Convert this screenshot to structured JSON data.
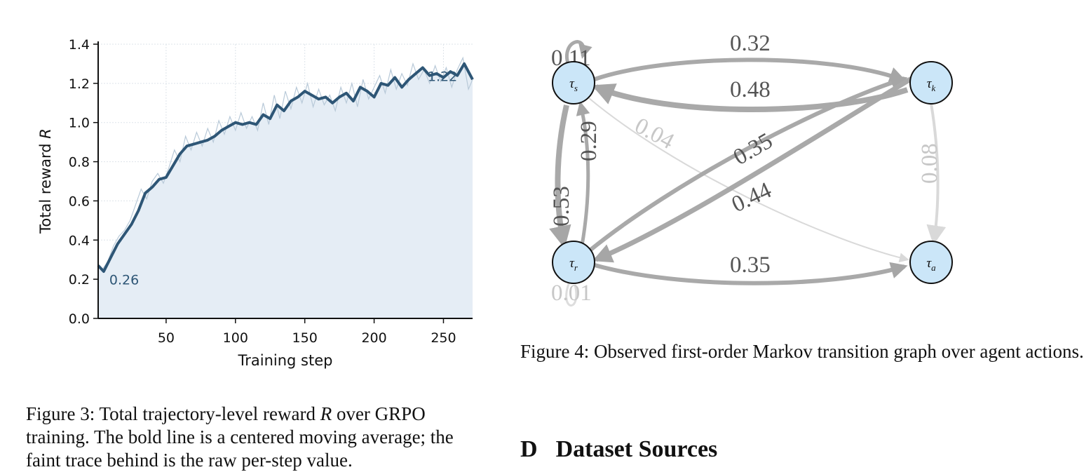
{
  "figure3": {
    "caption_prefix": "Figure 3: Total trajectory-level reward ",
    "caption_var": "R",
    "caption_suffix": " over GRPO training. The bold line is a centered moving average; the faint trace behind is the raw per-step value.",
    "chart_data": {
      "type": "line",
      "xlabel": "Training step",
      "ylabel": "Total reward R",
      "xlim": [
        1,
        271
      ],
      "ylim": [
        0.0,
        1.4
      ],
      "x_ticks": [
        "50",
        "100",
        "150",
        "200",
        "250"
      ],
      "y_ticks": [
        "0.0",
        "0.2",
        "0.4",
        "0.6",
        "0.8",
        "1.0",
        "1.2",
        "1.4"
      ],
      "grid": true,
      "fill_under": true,
      "annotations": [
        {
          "text": "0.26",
          "x": 6,
          "y": 0.26
        },
        {
          "text": "1.22",
          "x": 262,
          "y": 1.22
        }
      ],
      "series": [
        {
          "style": "bold moving average",
          "color": "#2e5676",
          "points": [
            [
              1,
              0.27
            ],
            [
              5,
              0.24
            ],
            [
              10,
              0.31
            ],
            [
              15,
              0.38
            ],
            [
              20,
              0.43
            ],
            [
              25,
              0.48
            ],
            [
              30,
              0.55
            ],
            [
              35,
              0.64
            ],
            [
              40,
              0.67
            ],
            [
              45,
              0.71
            ],
            [
              50,
              0.72
            ],
            [
              55,
              0.78
            ],
            [
              60,
              0.84
            ],
            [
              65,
              0.88
            ],
            [
              70,
              0.89
            ],
            [
              75,
              0.9
            ],
            [
              80,
              0.91
            ],
            [
              85,
              0.93
            ],
            [
              90,
              0.96
            ],
            [
              95,
              0.98
            ],
            [
              100,
              1.0
            ],
            [
              105,
              0.99
            ],
            [
              110,
              1.0
            ],
            [
              115,
              0.99
            ],
            [
              120,
              1.04
            ],
            [
              125,
              1.02
            ],
            [
              130,
              1.09
            ],
            [
              135,
              1.06
            ],
            [
              140,
              1.11
            ],
            [
              145,
              1.13
            ],
            [
              150,
              1.16
            ],
            [
              155,
              1.14
            ],
            [
              160,
              1.12
            ],
            [
              165,
              1.13
            ],
            [
              170,
              1.1
            ],
            [
              175,
              1.13
            ],
            [
              180,
              1.15
            ],
            [
              185,
              1.11
            ],
            [
              190,
              1.18
            ],
            [
              195,
              1.16
            ],
            [
              200,
              1.13
            ],
            [
              205,
              1.2
            ],
            [
              210,
              1.19
            ],
            [
              215,
              1.23
            ],
            [
              220,
              1.18
            ],
            [
              225,
              1.22
            ],
            [
              230,
              1.25
            ],
            [
              235,
              1.28
            ],
            [
              240,
              1.24
            ],
            [
              245,
              1.25
            ],
            [
              250,
              1.23
            ],
            [
              255,
              1.26
            ],
            [
              260,
              1.24
            ],
            [
              265,
              1.3
            ],
            [
              271,
              1.22
            ]
          ]
        },
        {
          "style": "faint raw trace",
          "color": "#b8c9d8",
          "points": [
            [
              1,
              0.26
            ],
            [
              4,
              0.25
            ],
            [
              8,
              0.29
            ],
            [
              12,
              0.37
            ],
            [
              16,
              0.42
            ],
            [
              20,
              0.45
            ],
            [
              24,
              0.5
            ],
            [
              28,
              0.58
            ],
            [
              32,
              0.66
            ],
            [
              36,
              0.61
            ],
            [
              40,
              0.7
            ],
            [
              44,
              0.74
            ],
            [
              48,
              0.69
            ],
            [
              52,
              0.77
            ],
            [
              56,
              0.86
            ],
            [
              60,
              0.8
            ],
            [
              64,
              0.93
            ],
            [
              68,
              0.86
            ],
            [
              72,
              0.95
            ],
            [
              76,
              0.88
            ],
            [
              80,
              0.97
            ],
            [
              84,
              0.9
            ],
            [
              88,
              1.01
            ],
            [
              92,
              0.94
            ],
            [
              96,
              1.03
            ],
            [
              100,
              0.96
            ],
            [
              104,
              1.05
            ],
            [
              108,
              0.97
            ],
            [
              112,
              1.03
            ],
            [
              116,
              0.96
            ],
            [
              120,
              1.1
            ],
            [
              124,
              0.99
            ],
            [
              128,
              1.14
            ],
            [
              132,
              1.02
            ],
            [
              136,
              1.16
            ],
            [
              140,
              1.07
            ],
            [
              144,
              1.18
            ],
            [
              148,
              1.1
            ],
            [
              152,
              1.2
            ],
            [
              156,
              1.08
            ],
            [
              160,
              1.17
            ],
            [
              164,
              1.09
            ],
            [
              168,
              1.14
            ],
            [
              172,
              1.06
            ],
            [
              176,
              1.18
            ],
            [
              180,
              1.1
            ],
            [
              184,
              1.2
            ],
            [
              188,
              1.08
            ],
            [
              192,
              1.22
            ],
            [
              196,
              1.12
            ],
            [
              200,
              1.18
            ],
            [
              204,
              1.24
            ],
            [
              208,
              1.15
            ],
            [
              212,
              1.27
            ],
            [
              216,
              1.17
            ],
            [
              220,
              1.25
            ],
            [
              224,
              1.19
            ],
            [
              228,
              1.3
            ],
            [
              232,
              1.22
            ],
            [
              236,
              1.27
            ],
            [
              240,
              1.2
            ],
            [
              244,
              1.29
            ],
            [
              248,
              1.21
            ],
            [
              252,
              1.28
            ],
            [
              256,
              1.18
            ],
            [
              260,
              1.27
            ],
            [
              264,
              1.33
            ],
            [
              268,
              1.17
            ],
            [
              271,
              1.22
            ]
          ]
        }
      ]
    }
  },
  "figure4": {
    "caption": "Figure 4: Observed first-order Markov transition graph over agent actions.",
    "nodes": [
      {
        "id": "s",
        "label": "τs"
      },
      {
        "id": "k",
        "label": "τk"
      },
      {
        "id": "r",
        "label": "τr"
      },
      {
        "id": "a",
        "label": "τa"
      }
    ],
    "edges": [
      {
        "from": "s",
        "to": "s",
        "label": "0.11",
        "weight": 0.11
      },
      {
        "from": "s",
        "to": "k",
        "label": "0.32",
        "weight": 0.32
      },
      {
        "from": "k",
        "to": "s",
        "label": "0.48",
        "weight": 0.48
      },
      {
        "from": "s",
        "to": "a",
        "label": "0.04",
        "weight": 0.04
      },
      {
        "from": "r",
        "to": "s",
        "label": "0.29",
        "weight": 0.29
      },
      {
        "from": "s",
        "to": "r",
        "label": "0.53",
        "weight": 0.53
      },
      {
        "from": "r",
        "to": "k",
        "label": "0.35",
        "weight": 0.35
      },
      {
        "from": "k",
        "to": "r",
        "label": "0.44",
        "weight": 0.44
      },
      {
        "from": "r",
        "to": "a",
        "label": "0.35",
        "weight": 0.35
      },
      {
        "from": "k",
        "to": "a",
        "label": "0.08",
        "weight": 0.08
      },
      {
        "from": "r",
        "to": "r",
        "label": "0.01",
        "weight": 0.01
      }
    ]
  },
  "section": {
    "number": "D",
    "title": "Dataset Sources"
  }
}
